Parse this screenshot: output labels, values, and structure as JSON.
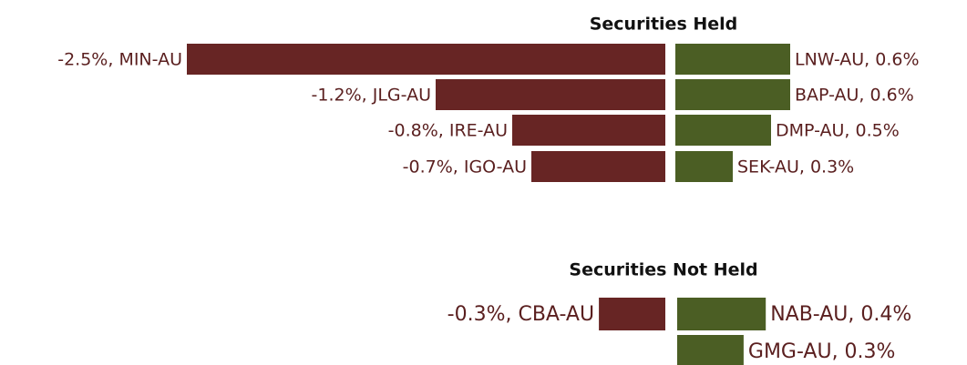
{
  "chart_data": [
    {
      "type": "diverging-bar",
      "title": "Securities Held",
      "series": [
        {
          "color": "#672524",
          "values": [
            -2.5,
            -1.2,
            -0.8,
            -0.7
          ],
          "value_labels": [
            "-2.5%,  MIN-AU",
            "-1.2%,  JLG-AU",
            "-0.8%,  IRE-AU",
            "-0.7%,  IGO-AU"
          ]
        },
        {
          "color": "#4b5e24",
          "values": [
            0.6,
            0.6,
            0.5,
            0.3
          ],
          "value_labels": [
            "LNW-AU,  0.6%",
            "BAP-AU,  0.6%",
            "DMP-AU,  0.5%",
            "SEK-AU,  0.3%"
          ]
        }
      ]
    },
    {
      "type": "diverging-bar",
      "title": "Securities Not Held",
      "series": [
        {
          "color": "#672524",
          "values": [
            -0.3,
            null
          ],
          "value_labels": [
            "-0.3%,  CBA-AU",
            null
          ]
        },
        {
          "color": "#4b5e24",
          "values": [
            0.4,
            0.3
          ],
          "value_labels": [
            "NAB-AU,  0.4%",
            "GMG-AU,  0.3%"
          ]
        }
      ]
    }
  ]
}
